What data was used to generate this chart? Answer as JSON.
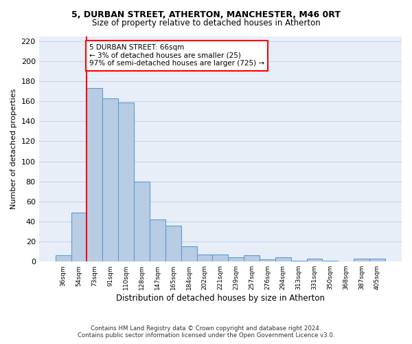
{
  "title_line1": "5, DURBAN STREET, ATHERTON, MANCHESTER, M46 0RT",
  "title_line2": "Size of property relative to detached houses in Atherton",
  "xlabel": "Distribution of detached houses by size in Atherton",
  "ylabel": "Number of detached properties",
  "bar_labels": [
    "36sqm",
    "54sqm",
    "73sqm",
    "91sqm",
    "110sqm",
    "128sqm",
    "147sqm",
    "165sqm",
    "184sqm",
    "202sqm",
    "221sqm",
    "239sqm",
    "257sqm",
    "276sqm",
    "294sqm",
    "313sqm",
    "331sqm",
    "350sqm",
    "368sqm",
    "387sqm",
    "405sqm"
  ],
  "bar_values": [
    6,
    49,
    173,
    163,
    159,
    80,
    42,
    36,
    15,
    7,
    7,
    4,
    6,
    2,
    4,
    1,
    3,
    1,
    0,
    3,
    3
  ],
  "bar_color": "#b8cce4",
  "bar_edge_color": "#5b9bd5",
  "annotation_text": "5 DURBAN STREET: 66sqm\n← 3% of detached houses are smaller (25)\n97% of semi-detached houses are larger (725) →",
  "annotation_box_color": "white",
  "annotation_box_edge_color": "red",
  "vline_color": "red",
  "vline_x": 1.5,
  "ylim": [
    0,
    225
  ],
  "yticks": [
    0,
    20,
    40,
    60,
    80,
    100,
    120,
    140,
    160,
    180,
    200,
    220
  ],
  "grid_color": "#c8d4e8",
  "footer_line1": "Contains HM Land Registry data © Crown copyright and database right 2024.",
  "footer_line2": "Contains public sector information licensed under the Open Government Licence v3.0.",
  "background_color": "#e8eef8",
  "fig_width": 6.0,
  "fig_height": 5.0,
  "dpi": 100
}
